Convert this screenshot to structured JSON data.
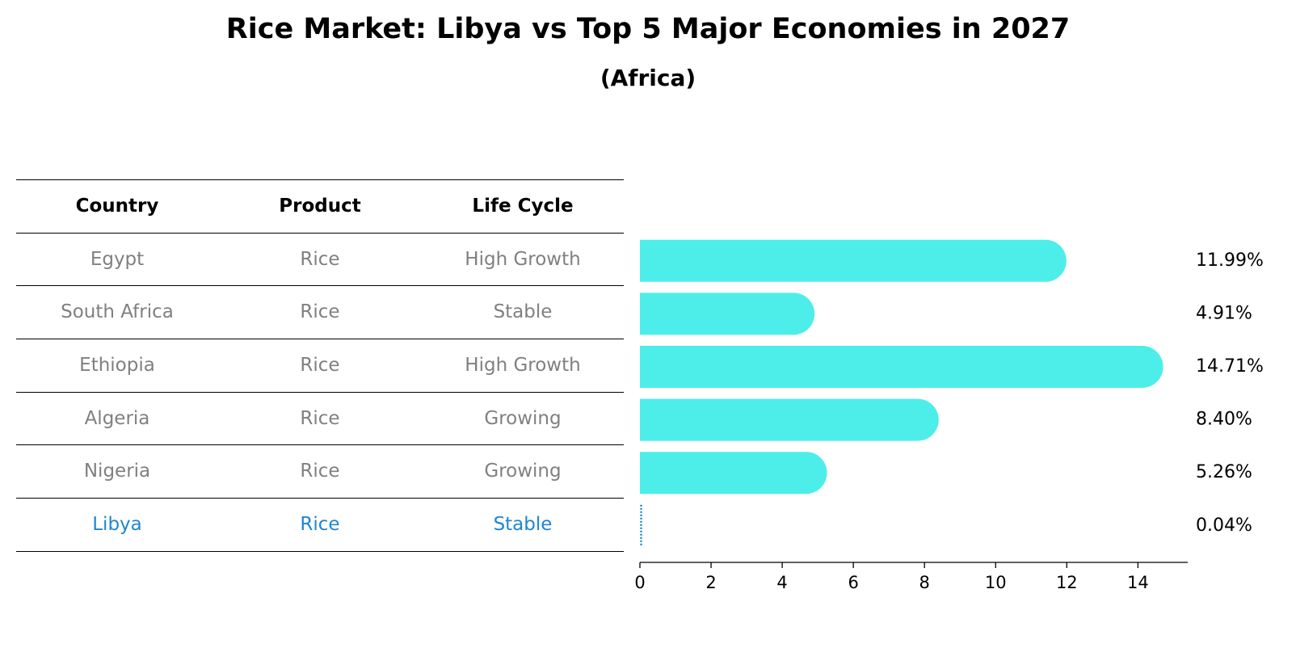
{
  "chart_data": {
    "type": "bar",
    "orientation": "horizontal",
    "title": "Rice Market: Libya vs Top 5 Major Economies in 2027",
    "subtitle": "(Africa)",
    "columns": [
      "Country",
      "Product",
      "Life Cycle"
    ],
    "rows": [
      {
        "country": "Egypt",
        "product": "Rice",
        "life_cycle": "High Growth",
        "value": 11.99,
        "label": "11.99%",
        "highlight": false
      },
      {
        "country": "South Africa",
        "product": "Rice",
        "life_cycle": "Stable",
        "value": 4.91,
        "label": "4.91%",
        "highlight": false
      },
      {
        "country": "Ethiopia",
        "product": "Rice",
        "life_cycle": "High Growth",
        "value": 14.71,
        "label": "14.71%",
        "highlight": false
      },
      {
        "country": "Algeria",
        "product": "Rice",
        "life_cycle": "Growing",
        "value": 8.4,
        "label": "8.40%",
        "highlight": false
      },
      {
        "country": "Nigeria",
        "product": "Rice",
        "life_cycle": "Growing",
        "value": 5.26,
        "label": "5.26%",
        "highlight": false
      },
      {
        "country": "Libya",
        "product": "Rice",
        "life_cycle": "Stable",
        "value": 0.04,
        "label": "0.04%",
        "highlight": true
      }
    ],
    "xticks": [
      0,
      2,
      4,
      6,
      8,
      10,
      12,
      14
    ],
    "xlim": [
      0,
      15.4
    ],
    "bar_color": "#4deeea",
    "highlight_color": "#1f86d0",
    "normal_text_color": "#808080"
  }
}
